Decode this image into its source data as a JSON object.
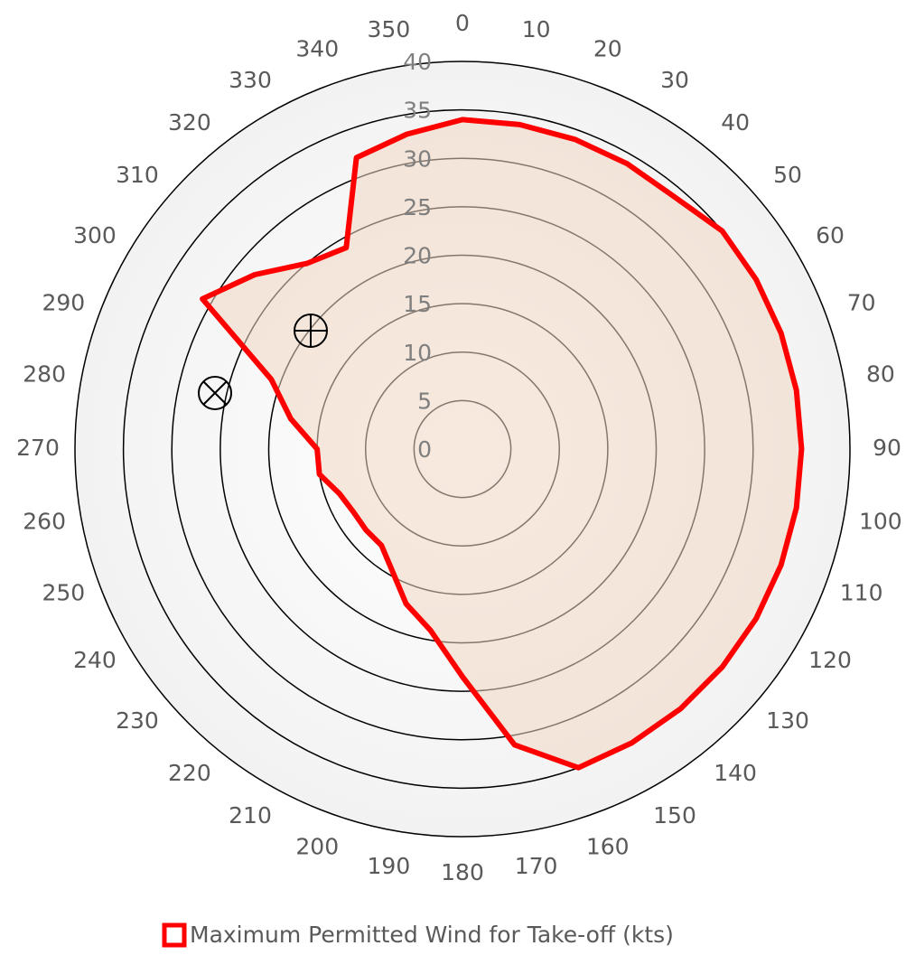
{
  "chart_data": {
    "type": "radar",
    "categories": [
      "0",
      "10",
      "20",
      "30",
      "40",
      "50",
      "60",
      "70",
      "80",
      "90",
      "100",
      "110",
      "120",
      "130",
      "140",
      "150",
      "160",
      "170",
      "180",
      "190",
      "200",
      "210",
      "220",
      "230",
      "240",
      "250",
      "260",
      "270",
      "280",
      "290",
      "300",
      "310",
      "320",
      "330",
      "340",
      "350"
    ],
    "series": [
      {
        "name": "Maximum Permitted Wind for Take-off (kts)",
        "color": "#ff0000",
        "values": [
          34,
          34,
          34,
          34,
          34,
          35,
          35,
          35,
          35,
          35,
          35,
          35,
          35,
          35,
          35,
          35,
          35,
          31,
          23.5,
          19,
          17,
          14.5,
          13,
          13,
          13,
          13.5,
          15,
          15,
          18,
          21,
          31,
          28,
          25,
          24,
          32,
          33
        ]
      }
    ],
    "ylim": [
      0,
      40
    ],
    "yticks": [
      0,
      5,
      10,
      15,
      20,
      25,
      30,
      35,
      40
    ],
    "grid": true
  }
}
